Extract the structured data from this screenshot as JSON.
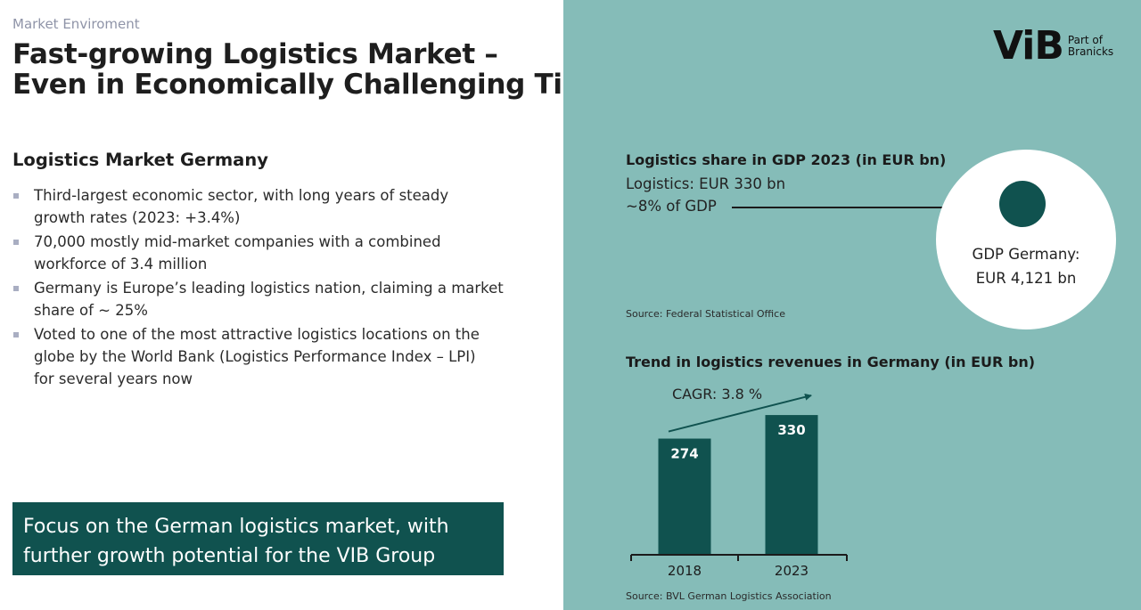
{
  "eyebrow": "Market Enviroment",
  "title": {
    "line1": "Fast-growing Logistics Market –",
    "line2": "Even in Economically Challenging Times"
  },
  "section_heading": "Logistics Market Germany",
  "bullets": [
    {
      "line1": "Third-largest economic sector, with long years of steady",
      "line2": "growth rates (2023: +3.4%)"
    },
    {
      "line1": "70,000 mostly mid-market companies with a combined",
      "line2": "workforce of 3.4 million"
    },
    {
      "line1": "Germany is Europe’s leading logistics nation, claiming a market",
      "line2": "share of ~ 25%"
    },
    {
      "line1": "Voted to one of the most attractive logistics locations on the",
      "line2": "globe by the World Bank (Logistics Performance Index – LPI)",
      "line3": "for several years now"
    }
  ],
  "focus_box": {
    "line1": "Focus on the German logistics market, with",
    "line2": "further growth potential for the VIB Group"
  },
  "logo": {
    "main": "ViB",
    "sub_line1": "Part of",
    "sub_line2": "Branicks"
  },
  "gdp": {
    "title": "Logistics share in GDP 2023 (in EUR bn)",
    "logistics_value": "Logistics: EUR 330 bn",
    "share": "~8% of GDP",
    "circle_line1": "GDP Germany:",
    "circle_line2": "EUR 4,121 bn",
    "source": "Source: Federal Statistical Office"
  },
  "trend": {
    "title": "Trend in logistics revenues in Germany (in EUR bn)",
    "cagr": "CAGR: 3.8 %",
    "source": "Source: BVL German Logistics Association"
  },
  "colors": {
    "dark_teal": "#10524f",
    "panel_teal": "#85bcb8",
    "bullet_marker": "#a9aec2"
  },
  "chart_data": {
    "type": "bar",
    "categories": [
      "2018",
      "2023"
    ],
    "values": [
      274,
      330
    ],
    "title": "Trend in logistics revenues in Germany (in EUR bn)",
    "annotation": "CAGR: 3.8 %",
    "data_labels": [
      "274",
      "330"
    ],
    "grid": false,
    "legend": false
  }
}
